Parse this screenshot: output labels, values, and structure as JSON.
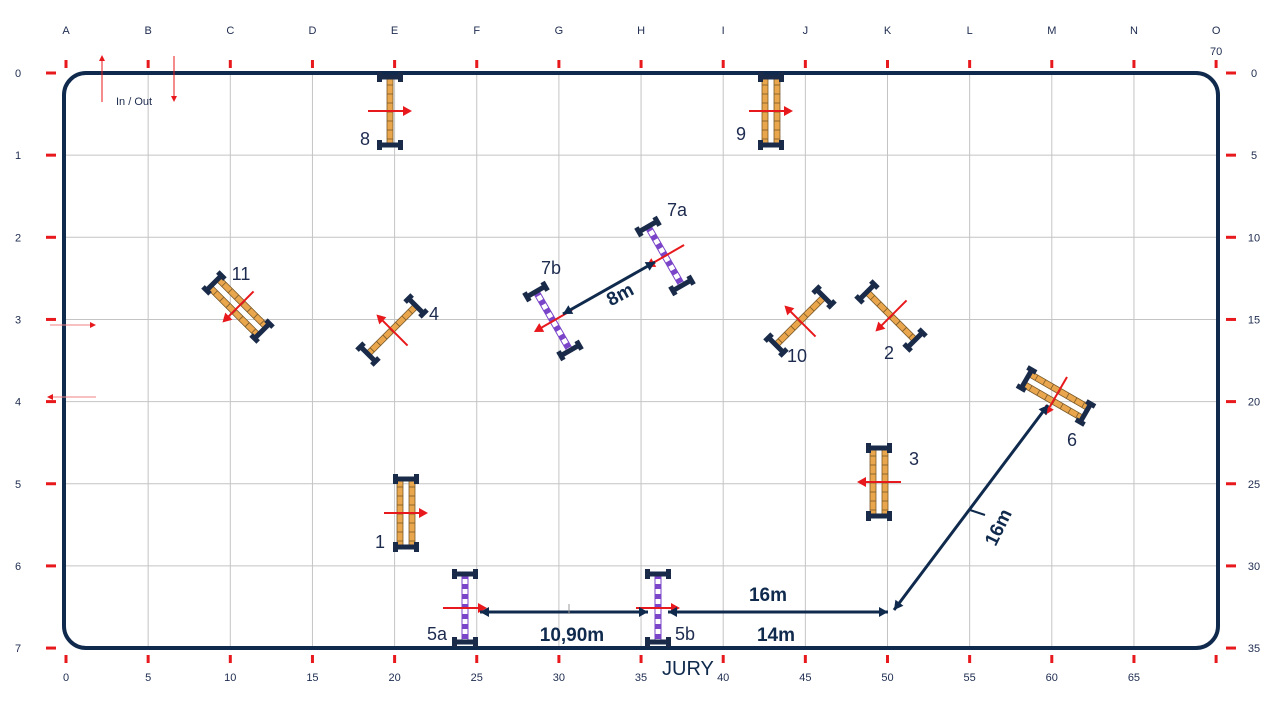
{
  "arena": {
    "width_m": 70,
    "length_m": 35,
    "corner_label": "70",
    "in_out_label": "In / Out",
    "jury_label": "JURY",
    "column_letters": [
      "A",
      "B",
      "C",
      "D",
      "E",
      "F",
      "G",
      "H",
      "I",
      "J",
      "K",
      "L",
      "M",
      "N",
      "O"
    ],
    "bottom_scale": [
      "0",
      "5",
      "10",
      "15",
      "20",
      "25",
      "30",
      "35",
      "40",
      "45",
      "50",
      "55",
      "60",
      "65"
    ],
    "left_scale": [
      "0",
      "1",
      "2",
      "3",
      "4",
      "5",
      "6",
      "7"
    ],
    "right_scale": [
      "0",
      "5",
      "10",
      "15",
      "20",
      "25",
      "30",
      "35"
    ]
  },
  "colors": {
    "arena_border": "#0f2a4d",
    "grid": "#c4c4c4",
    "tick": "#e8191d",
    "orange_pole": "#e9a64d",
    "purple_pole": "#7b45c9",
    "standard": "#1a2b4a",
    "direction_arrow": "#e8191d"
  },
  "fences": [
    {
      "id": "1",
      "label": "1",
      "type": "oxer",
      "color": "orange"
    },
    {
      "id": "2",
      "label": "2",
      "type": "vertical",
      "color": "orange"
    },
    {
      "id": "3",
      "label": "3",
      "type": "oxer",
      "color": "orange"
    },
    {
      "id": "4",
      "label": "4",
      "type": "vertical",
      "color": "orange"
    },
    {
      "id": "5a",
      "label": "5a",
      "type": "vertical",
      "color": "purple"
    },
    {
      "id": "5b",
      "label": "5b",
      "type": "vertical",
      "color": "purple"
    },
    {
      "id": "6",
      "label": "6",
      "type": "oxer",
      "color": "orange"
    },
    {
      "id": "7a",
      "label": "7a",
      "type": "vertical",
      "color": "purple"
    },
    {
      "id": "7b",
      "label": "7b",
      "type": "vertical",
      "color": "purple"
    },
    {
      "id": "8",
      "label": "8",
      "type": "vertical",
      "color": "orange"
    },
    {
      "id": "9",
      "label": "9",
      "type": "oxer",
      "color": "orange"
    },
    {
      "id": "10",
      "label": "10",
      "type": "vertical",
      "color": "orange"
    },
    {
      "id": "11",
      "label": "11",
      "type": "oxer",
      "color": "orange"
    }
  ],
  "distances": [
    {
      "id": "5a-5b",
      "label": "10,90m"
    },
    {
      "id": "5b-turn-upper",
      "label": "16m"
    },
    {
      "id": "5b-turn-lower",
      "label": "14m"
    },
    {
      "id": "turn-6",
      "label": "16m"
    },
    {
      "id": "7a-7b",
      "label": "8m"
    }
  ]
}
